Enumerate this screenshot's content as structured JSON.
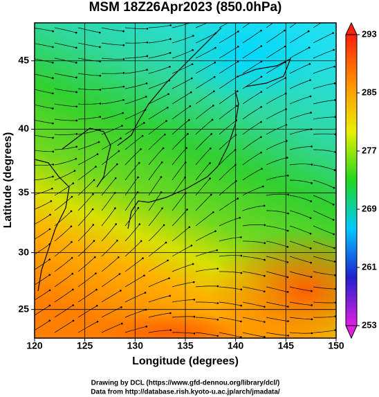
{
  "chart_data": {
    "type": "map",
    "title": "MSM 18Z26Apr2023 (850.0hPa)",
    "x_label": "Longitude (degrees)",
    "y_label": "Latitude  (degrees)",
    "projection": "mercator",
    "xlim": [
      120,
      150
    ],
    "ylim": [
      22.4,
      47.6
    ],
    "xticks": [
      120,
      125,
      130,
      135,
      140,
      145,
      150
    ],
    "yticks": [
      25,
      30,
      35,
      40,
      45
    ],
    "grid": true,
    "colorbar": {
      "range": [
        253,
        293
      ],
      "ticks": [
        253,
        261,
        269,
        277,
        285,
        293
      ],
      "colors": [
        "#e020e0",
        "#2020d0",
        "#00c8ff",
        "#20d820",
        "#e8f000",
        "#ff9000",
        "#ff2010"
      ]
    },
    "credits": [
      "Drawing by DCL (https://www.gfd-dennou.org/library/dcl/)",
      "Data from http://database.rish.kyoto-u.ac.jp/arch/jmadata/"
    ]
  }
}
